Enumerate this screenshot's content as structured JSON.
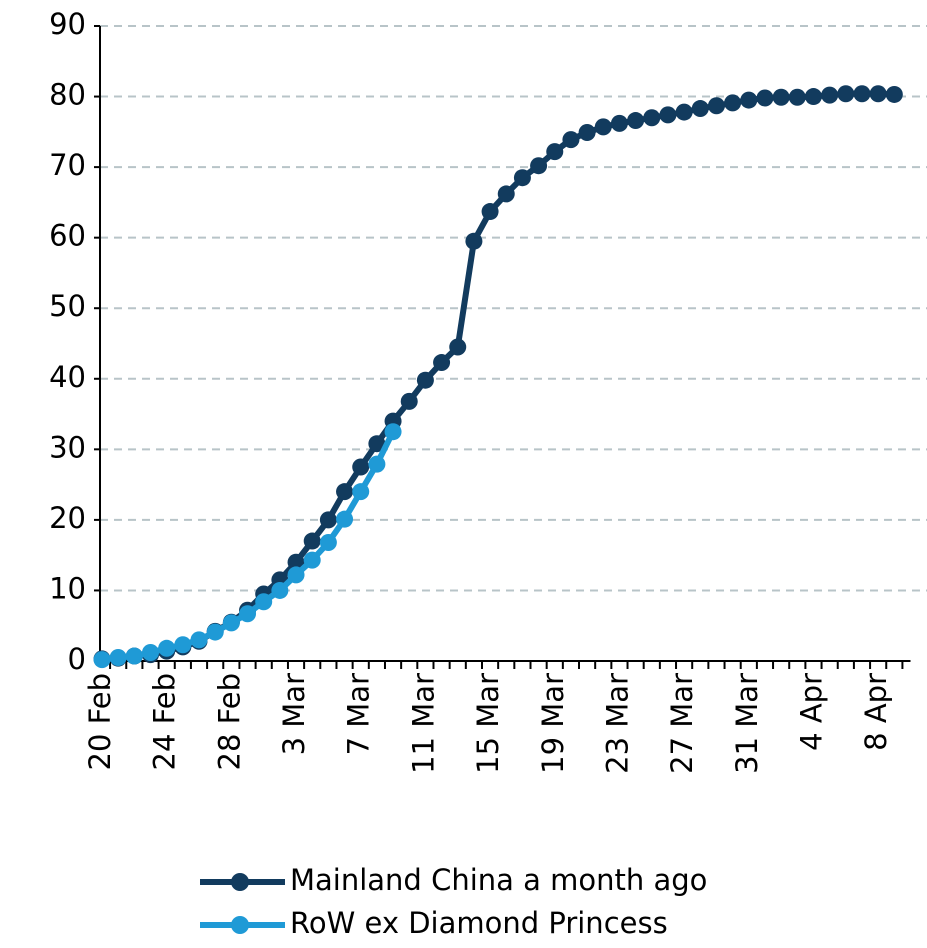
{
  "chart_data": {
    "type": "line",
    "categories": [
      "20 Feb",
      null,
      null,
      null,
      "24 Feb",
      null,
      null,
      null,
      "28 Feb",
      null,
      null,
      null,
      "3 Mar",
      null,
      null,
      null,
      "7 Mar",
      null,
      null,
      null,
      "11 Mar",
      null,
      null,
      null,
      "15 Mar",
      null,
      null,
      null,
      "19 Mar",
      null,
      null,
      null,
      "23 Mar",
      null,
      null,
      null,
      "27 Mar",
      null,
      null,
      null,
      "31 Mar",
      null,
      null,
      null,
      "4 Apr",
      null,
      null,
      null,
      "8 Apr",
      null
    ],
    "series": [
      {
        "name": "Mainland China a month ago",
        "color": "#123b5e",
        "values": [
          0.3,
          0.4,
          0.7,
          0.9,
          1.4,
          2.0,
          2.8,
          4.2,
          5.5,
          7.2,
          9.5,
          11.5,
          14.0,
          17.0,
          20.0,
          24.0,
          27.5,
          30.8,
          34.0,
          36.8,
          39.8,
          42.3,
          44.5,
          59.5,
          63.7,
          66.2,
          68.5,
          70.2,
          72.2,
          73.9,
          74.9,
          75.7,
          76.2,
          76.6,
          77.0,
          77.4,
          77.8,
          78.3,
          78.7,
          79.1,
          79.5,
          79.8,
          79.9,
          79.9,
          80.0,
          80.2,
          80.4,
          80.4,
          80.4,
          80.3
        ]
      },
      {
        "name": "RoW ex Diamond Princess",
        "color": "#1f9ad6",
        "values": [
          0.2,
          0.5,
          0.7,
          1.2,
          1.8,
          2.3,
          3.0,
          4.1,
          5.4,
          6.7,
          8.4,
          10.0,
          12.2,
          14.3,
          16.8,
          20.1,
          24.0,
          27.9,
          32.5,
          null,
          null,
          null,
          null,
          null,
          null,
          null,
          null,
          null,
          null,
          null,
          null,
          null,
          null,
          null,
          null,
          null,
          null,
          null,
          null,
          null,
          null,
          null,
          null,
          null,
          null,
          null,
          null,
          null,
          null,
          null
        ]
      }
    ],
    "ylim": [
      0,
      90
    ],
    "yticks": [
      0,
      10,
      20,
      30,
      40,
      50,
      60,
      70,
      80,
      90
    ],
    "grid": true
  }
}
